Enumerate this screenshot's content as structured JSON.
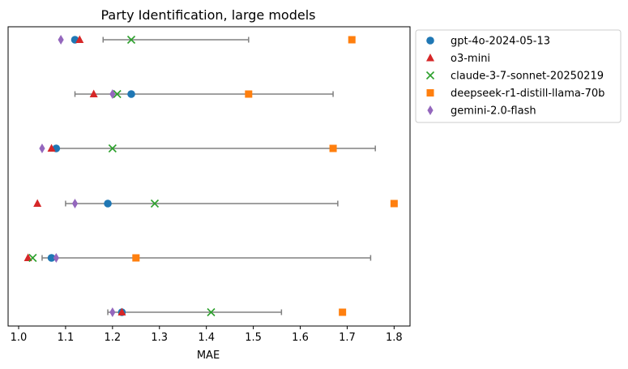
{
  "chart_data": {
    "type": "scatter",
    "title": "Party Identification, large models",
    "xlabel": "MAE",
    "ylabel": "",
    "xlim": [
      0.985,
      1.84
    ],
    "xticks": [
      "1.0",
      "1.1",
      "1.2",
      "1.3",
      "1.4",
      "1.5",
      "1.6",
      "1.7",
      "1.8"
    ],
    "grid": false,
    "legend_position": "outside-top-right",
    "rows": [
      {
        "range": [
          1.18,
          1.49
        ]
      },
      {
        "range": [
          1.12,
          1.67
        ]
      },
      {
        "range": [
          1.08,
          1.76
        ]
      },
      {
        "range": [
          1.1,
          1.68
        ]
      },
      {
        "range": [
          1.05,
          1.75
        ]
      },
      {
        "range": [
          1.19,
          1.56
        ]
      }
    ],
    "series": [
      {
        "name": "gpt-4o-2024-05-13",
        "marker": "circle",
        "color": "#1f77b4",
        "values": [
          1.12,
          1.24,
          1.08,
          1.19,
          1.07,
          1.22
        ]
      },
      {
        "name": "o3-mini",
        "marker": "triangle",
        "color": "#d62728",
        "values": [
          1.13,
          1.16,
          1.07,
          1.04,
          1.02,
          1.22
        ]
      },
      {
        "name": "claude-3-7-sonnet-20250219",
        "marker": "x",
        "color": "#2ca02c",
        "values": [
          1.24,
          1.21,
          1.2,
          1.29,
          1.03,
          1.41
        ]
      },
      {
        "name": "deepseek-r1-distill-llama-70b",
        "marker": "square",
        "color": "#ff7f0e",
        "values": [
          1.71,
          1.49,
          1.67,
          1.8,
          1.25,
          1.69
        ]
      },
      {
        "name": "gemini-2.0-flash",
        "marker": "diamond",
        "color": "#9467bd",
        "values": [
          1.09,
          1.2,
          1.05,
          1.12,
          1.08,
          1.2
        ]
      }
    ],
    "range_color": "#808080"
  }
}
